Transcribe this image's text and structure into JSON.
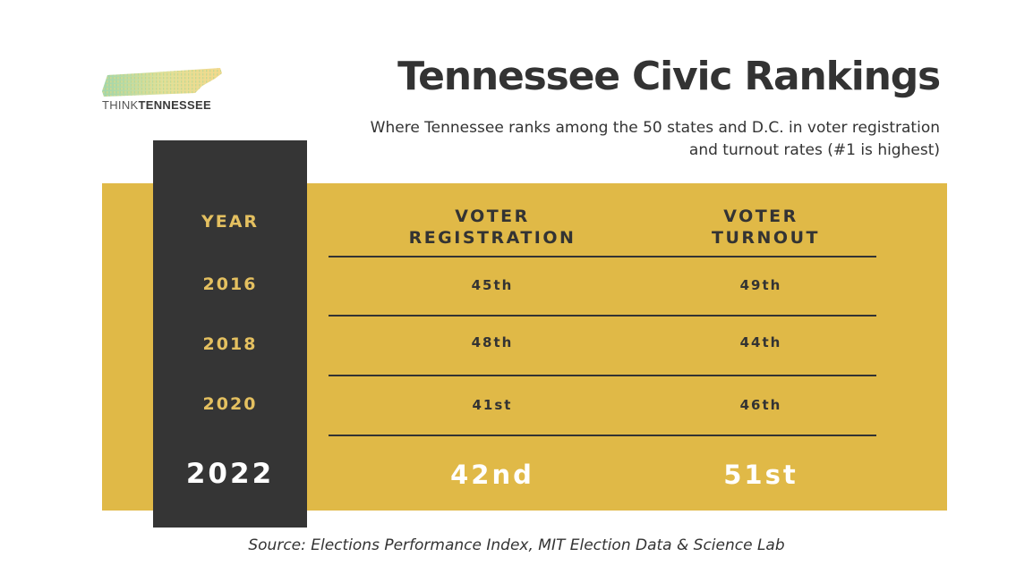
{
  "logo": {
    "text_light": "THINK",
    "text_bold": "TENNESSEE"
  },
  "title": "Tennessee Civic Rankings",
  "subtitle": "Where Tennessee ranks among the 50 states and D.C. in voter registration and turnout rates (#1 is highest)",
  "table": {
    "headers": {
      "year": "YEAR",
      "registration": "VOTER REGISTRATION",
      "turnout": "VOTER TURNOUT"
    },
    "rows": [
      {
        "year": "2016",
        "registration": "45th",
        "turnout": "49th"
      },
      {
        "year": "2018",
        "registration": "48th",
        "turnout": "44th"
      },
      {
        "year": "2020",
        "registration": "41st",
        "turnout": "46th"
      },
      {
        "year": "2022",
        "registration": "42nd",
        "turnout": "51st"
      }
    ]
  },
  "source": "Source: Elections Performance Index, MIT Election Data & Science Lab",
  "colors": {
    "gold": "#e0b947",
    "dark": "#353535",
    "year_text": "#e4c060",
    "text": "#333333"
  }
}
